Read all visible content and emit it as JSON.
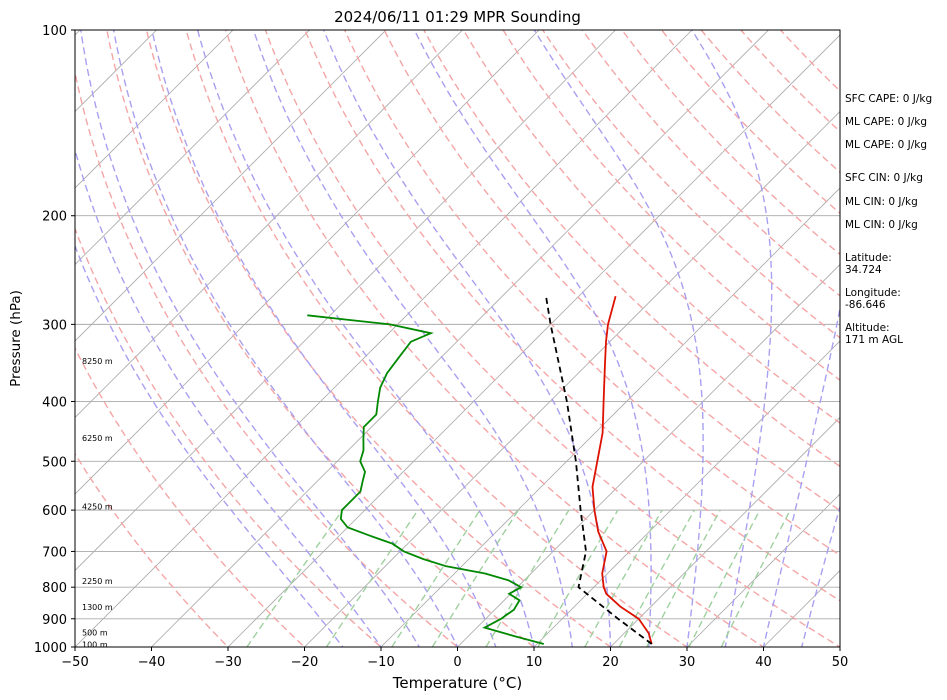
{
  "chart_data": {
    "type": "line",
    "title": "2024/06/11 01:29 MPR Sounding",
    "xlabel": "Temperature (°C)",
    "ylabel": "Pressure (hPa)",
    "xlim": [
      -50,
      50
    ],
    "ylim": [
      1000,
      100
    ],
    "y_scale": "log",
    "x_ticks": [
      -50,
      -40,
      -30,
      -20,
      -10,
      0,
      10,
      20,
      30,
      40,
      50
    ],
    "x_tick_labels": [
      "−50",
      "−40",
      "−30",
      "−20",
      "−10",
      "0",
      "10",
      "20",
      "30",
      "40",
      "50"
    ],
    "y_ticks": [
      1000,
      900,
      800,
      700,
      600,
      500,
      400,
      300,
      200,
      100
    ],
    "y_tick_labels": [
      "1000",
      "900",
      "800",
      "700",
      "600",
      "500",
      "400",
      "300",
      "200",
      "100"
    ],
    "grid": true,
    "skew_t": true,
    "series": [
      {
        "role": "temperature",
        "color": "#dd1100",
        "pressure": [
          989,
          950,
          900,
          860,
          820,
          800,
          760,
          700,
          650,
          600,
          550,
          500,
          450,
          400,
          350,
          320,
          300,
          270
        ],
        "temperature": [
          25.0,
          23.2,
          20.0,
          16.0,
          12.5,
          11.3,
          9.3,
          7.0,
          3.3,
          0.0,
          -3.3,
          -6.0,
          -9.0,
          -13.0,
          -17.5,
          -20.5,
          -22.5,
          -25.2
        ]
      },
      {
        "role": "dewpoint",
        "color": "#008800",
        "pressure": [
          989,
          960,
          930,
          900,
          870,
          840,
          820,
          800,
          780,
          760,
          740,
          720,
          700,
          680,
          660,
          640,
          620,
          600,
          580,
          560,
          540,
          520,
          500,
          480,
          460,
          440,
          420,
          400,
          380,
          360,
          340,
          320,
          310,
          300,
          295,
          290
        ],
        "temperature": [
          10.9,
          6.0,
          1.0,
          2.0,
          2.5,
          2.0,
          -0.2,
          0.5,
          -2.0,
          -6.0,
          -12.0,
          -16.0,
          -19.5,
          -22.0,
          -26.0,
          -30.0,
          -32.0,
          -33.0,
          -33.0,
          -33.0,
          -34.0,
          -35.0,
          -37.0,
          -38.0,
          -39.5,
          -41.0,
          -41.0,
          -42.5,
          -44.0,
          -45.0,
          -45.5,
          -46.0,
          -44.5,
          -51.0,
          -57.0,
          -63.0
        ]
      },
      {
        "role": "parcel",
        "color": "#000000",
        "style": "dashed",
        "pressure": [
          989,
          900,
          800,
          700,
          600,
          500,
          400,
          300,
          270
        ],
        "temperature": [
          25.0,
          17.3,
          8.0,
          4.3,
          -1.8,
          -8.8,
          -17.8,
          -30.0,
          -34.3
        ]
      }
    ],
    "height_labels": [
      {
        "label": "8250 m",
        "pressure": 344
      },
      {
        "label": "6250 m",
        "pressure": 458
      },
      {
        "label": "4250 m",
        "pressure": 592
      },
      {
        "label": "2250 m",
        "pressure": 782
      },
      {
        "label": "1300 m",
        "pressure": 862
      },
      {
        "label": "500 m",
        "pressure": 948
      },
      {
        "label": "100 m",
        "pressure": 990
      }
    ]
  },
  "info": {
    "sfc_cape": "SFC CAPE: 0 J/kg",
    "ml_cape_1": "ML CAPE: 0 J/kg",
    "ml_cape_2": "ML CAPE: 0 J/kg",
    "sfc_cin": "SFC CIN: 0 J/kg",
    "ml_cin_1": "ML CIN: 0 J/kg",
    "ml_cin_2": "ML CIN: 0 J/kg",
    "latitude_label": "Latitude:",
    "latitude_value": "34.724",
    "longitude_label": "Longitude:",
    "longitude_value": "-86.646",
    "altitude_label": "Altitude:",
    "altitude_value": "171 m AGL"
  },
  "colors": {
    "dry_adiabat": "#f4a6a6",
    "moist_adiabat": "#a8a0f0",
    "mixing_ratio": "#9fd09f",
    "isotherm": "#aaaaaa",
    "grid": "#aaaaaa"
  }
}
